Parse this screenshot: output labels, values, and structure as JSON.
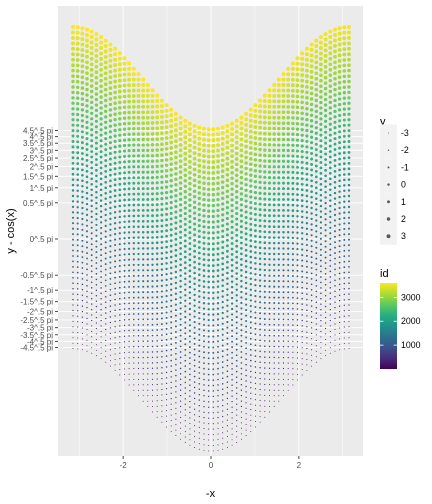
{
  "chart_data": {
    "type": "scatter",
    "xlabel": "-x",
    "ylabel": "y - cos(x)",
    "x_ticks": [
      "-2",
      "0",
      "2"
    ],
    "x_tick_values": [
      -2,
      0,
      2
    ],
    "xlim": [
      -3.14159,
      3.14159
    ],
    "y_ticks": [
      "4.5^.5 pi",
      "4^.5 pi",
      "3.5^.5 pi",
      "3^.5 pi",
      "2.5^.5 pi",
      "2^.5 pi",
      "1.5^.5 pi",
      "1^.5 pi",
      "0.5^.5 pi",
      "0^.5 pi",
      "-0.5^.5 pi",
      "-1^.5 pi",
      "-1.5^.5 pi",
      "-2^.5 pi",
      "-2.5^.5 pi",
      "-3^.5 pi",
      "-3.5^.5 pi",
      "-4^.5 pi",
      "-4.5^.5 pi"
    ],
    "y_tick_values": [
      2.1213,
      2.0,
      1.8708,
      1.7321,
      1.5811,
      1.4142,
      1.2247,
      1.0,
      0.7071,
      0.0,
      -0.7071,
      -1.0,
      -1.2247,
      -1.4142,
      -1.5811,
      -1.7321,
      -1.8708,
      -2.0,
      -2.1213
    ],
    "grid": true,
    "generator": {
      "x_from": -3.14159,
      "x_to": 3.14159,
      "x_count": 60,
      "y_from": -3.14159,
      "y_to": 3.14159,
      "y_count": 60,
      "plotted_x": "-x",
      "plotted_y": "y - cos(x)"
    },
    "color_legend": {
      "title": "id",
      "labels": [
        "3000",
        "2000",
        "1000"
      ],
      "values": [
        3000,
        2000,
        1000
      ],
      "range": [
        1,
        3600
      ],
      "palette": [
        "#440154",
        "#472d7b",
        "#3b528b",
        "#2c728e",
        "#21918c",
        "#28ae80",
        "#5ec962",
        "#addc30",
        "#fde725"
      ]
    },
    "size_legend": {
      "title": "y",
      "labels": [
        "-3",
        "-2",
        "-1",
        "0",
        "1",
        "2",
        "3"
      ],
      "values": [
        -3,
        -2,
        -1,
        0,
        1,
        2,
        3
      ]
    },
    "colors": {
      "panel": "#ebebeb",
      "grid_major": "#ffffff",
      "tick_text": "#4d4d4d",
      "size_key": "#595959"
    }
  }
}
